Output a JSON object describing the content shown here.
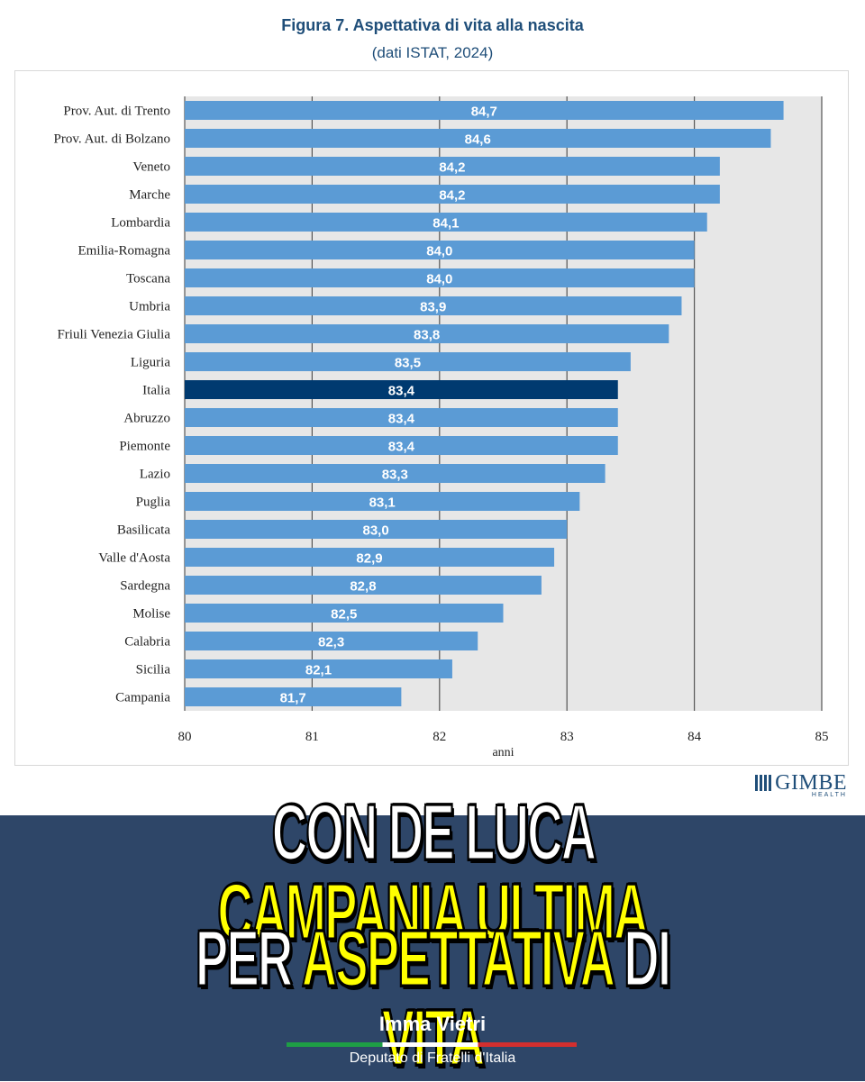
{
  "title": "Figura 7. Aspettativa di vita alla nascita",
  "subtitle": "(dati ISTAT, 2024)",
  "chart_data": {
    "type": "bar",
    "orientation": "horizontal",
    "categories": [
      "Prov. Aut. di Trento",
      "Prov. Aut. di Bolzano",
      "Veneto",
      "Marche",
      "Lombardia",
      "Emilia-Romagna",
      "Toscana",
      "Umbria",
      "Friuli Venezia Giulia",
      "Liguria",
      "Italia",
      "Abruzzo",
      "Piemonte",
      "Lazio",
      "Puglia",
      "Basilicata",
      "Valle d'Aosta",
      "Sardegna",
      "Molise",
      "Calabria",
      "Sicilia",
      "Campania"
    ],
    "values": [
      84.7,
      84.6,
      84.2,
      84.2,
      84.1,
      84.0,
      84.0,
      83.9,
      83.8,
      83.5,
      83.4,
      83.4,
      83.4,
      83.3,
      83.1,
      83.0,
      82.9,
      82.8,
      82.5,
      82.3,
      82.1,
      81.7
    ],
    "data_labels": [
      "84,7",
      "84,6",
      "84,2",
      "84,2",
      "84,1",
      "84,0",
      "84,0",
      "83,9",
      "83,8",
      "83,5",
      "83,4",
      "83,4",
      "83,4",
      "83,3",
      "83,1",
      "83,0",
      "82,9",
      "82,8",
      "82,5",
      "82,3",
      "82,1",
      "81,7"
    ],
    "highlight": "Italia",
    "xlim": [
      80,
      85
    ],
    "xticks": [
      "80",
      "81",
      "82",
      "83",
      "84",
      "85"
    ],
    "xlabel": "anni",
    "ylabel": "",
    "grid": true,
    "bar_color": "#5b9bd5",
    "highlight_color": "#003a70",
    "plot_background": "#e7e7e7"
  },
  "logo": {
    "name": "GIMBE",
    "tagline": "HEALTH"
  },
  "banner": {
    "line1_white": "CON DE LUCA",
    "line1_yellow": "CAMPANIA ULTIMA",
    "line2_white": "PER",
    "line2_yellow1": "ASPETTATIVA",
    "line2_white2": "DI",
    "line2_yellow2": "VITA"
  },
  "author": {
    "name": "Imma Vietri",
    "role": "Deputato di Fratelli d'Italia"
  }
}
